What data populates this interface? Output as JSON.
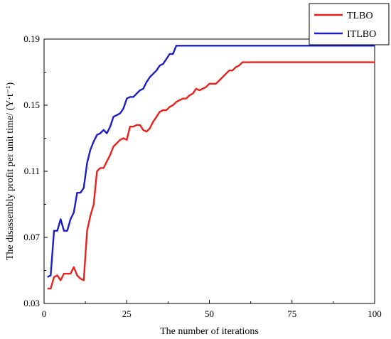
{
  "chart_data": {
    "type": "line",
    "title": "",
    "xlabel": "The number of iterations",
    "ylabel": "The disassembly profit per unit time/ (Y·t⁻¹)",
    "xlim": [
      0,
      100
    ],
    "ylim": [
      0.03,
      0.19
    ],
    "xticks": [
      0,
      25,
      50,
      75,
      100
    ],
    "yticks": [
      0.03,
      0.07,
      0.11,
      0.15,
      0.19
    ],
    "ytick_labels": [
      "0.03",
      "0.07",
      "0.11",
      "0.15",
      "0.19"
    ],
    "grid": false,
    "legend": "top-right",
    "series": [
      {
        "name": "TLBO",
        "color": "#e8211d",
        "x": [
          1,
          2,
          3,
          4,
          5,
          6,
          7,
          8,
          9,
          10,
          11,
          12,
          13,
          14,
          15,
          16,
          17,
          18,
          19,
          20,
          21,
          22,
          23,
          24,
          25,
          26,
          27,
          28,
          29,
          30,
          31,
          32,
          33,
          34,
          35,
          36,
          37,
          38,
          39,
          40,
          41,
          42,
          43,
          44,
          45,
          46,
          47,
          48,
          49,
          50,
          51,
          52,
          53,
          54,
          55,
          56,
          57,
          58,
          59,
          60,
          65,
          70,
          80,
          90,
          100
        ],
        "values": [
          0.039,
          0.039,
          0.046,
          0.047,
          0.044,
          0.048,
          0.048,
          0.048,
          0.052,
          0.047,
          0.045,
          0.044,
          0.074,
          0.083,
          0.09,
          0.11,
          0.112,
          0.112,
          0.116,
          0.12,
          0.125,
          0.127,
          0.129,
          0.13,
          0.129,
          0.137,
          0.137,
          0.138,
          0.138,
          0.135,
          0.134,
          0.136,
          0.14,
          0.143,
          0.146,
          0.147,
          0.147,
          0.149,
          0.15,
          0.152,
          0.153,
          0.154,
          0.154,
          0.156,
          0.157,
          0.16,
          0.159,
          0.16,
          0.161,
          0.163,
          0.163,
          0.163,
          0.165,
          0.167,
          0.169,
          0.171,
          0.171,
          0.173,
          0.174,
          0.176,
          0.176,
          0.176,
          0.176,
          0.176,
          0.176
        ]
      },
      {
        "name": "ITLBO",
        "color": "#1c1cc8",
        "x": [
          1,
          2,
          3,
          4,
          5,
          6,
          7,
          8,
          9,
          10,
          11,
          12,
          13,
          14,
          15,
          16,
          17,
          18,
          19,
          20,
          21,
          22,
          23,
          24,
          25,
          26,
          27,
          28,
          29,
          30,
          31,
          32,
          33,
          34,
          35,
          36,
          37,
          38,
          39,
          40,
          45,
          50,
          60,
          70,
          80,
          90,
          100
        ],
        "values": [
          0.046,
          0.047,
          0.074,
          0.074,
          0.081,
          0.074,
          0.074,
          0.081,
          0.085,
          0.097,
          0.097,
          0.1,
          0.115,
          0.123,
          0.128,
          0.132,
          0.133,
          0.135,
          0.133,
          0.137,
          0.143,
          0.144,
          0.145,
          0.148,
          0.154,
          0.155,
          0.155,
          0.157,
          0.159,
          0.16,
          0.164,
          0.167,
          0.169,
          0.171,
          0.174,
          0.175,
          0.178,
          0.181,
          0.181,
          0.186,
          0.186,
          0.186,
          0.186,
          0.186,
          0.186,
          0.186,
          0.186
        ]
      }
    ]
  }
}
